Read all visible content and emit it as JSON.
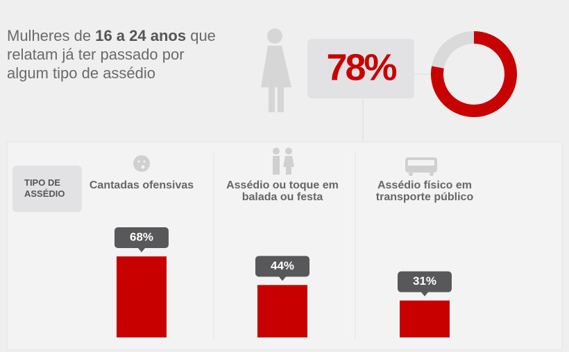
{
  "header": {
    "prefix": "Mulheres de",
    "highlight": "16 a 24 anos",
    "suffix": "que relatam já ter passado por algum tipo de assédio"
  },
  "chart_data": [
    {
      "type": "pie",
      "values": [
        78
      ],
      "value_labels": [
        "78%"
      ],
      "color": "#c80000"
    },
    {
      "type": "bar",
      "label": "TIPO DE ASSÉDIO",
      "categories": [
        "Cantadas ofensivas",
        "Assédio ou toque em balada ou festa",
        "Assédio físico em transporte público"
      ],
      "values": [
        68,
        44,
        31
      ],
      "value_labels": [
        "68%",
        "44%",
        "31%"
      ],
      "color": "#c80000"
    }
  ]
}
